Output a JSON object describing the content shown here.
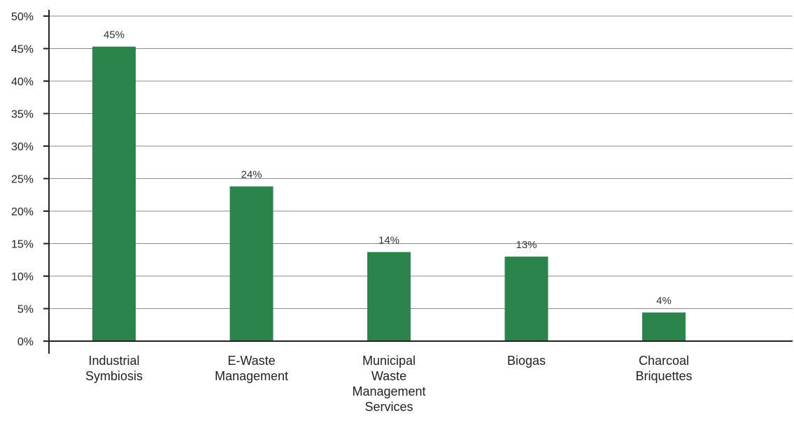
{
  "chart_data": {
    "type": "bar",
    "categories": [
      "Industrial Symbiosis",
      "E-Waste Management",
      "Municipal Waste Management Services",
      "Biogas",
      "Charcoal Briquettes"
    ],
    "category_label_lines": [
      [
        "Industrial",
        "Symbiosis"
      ],
      [
        "E-Waste",
        "Management"
      ],
      [
        "Municipal",
        "Waste",
        "Management",
        "Services"
      ],
      [
        "Biogas"
      ],
      [
        "Charcoal",
        "Briquettes"
      ]
    ],
    "values": [
      45.3,
      23.8,
      13.7,
      13.0,
      4.4
    ],
    "data_labels": [
      "45%",
      "24%",
      "14%",
      "13%",
      "4%"
    ],
    "y_ticks": [
      0,
      5,
      10,
      15,
      20,
      25,
      30,
      35,
      40,
      45,
      50
    ],
    "y_tick_labels": [
      "0%",
      "5%",
      "10%",
      "15%",
      "20%",
      "25%",
      "30%",
      "35%",
      "40%",
      "45%",
      "50%"
    ],
    "ylim": [
      0,
      50
    ],
    "grid": true,
    "bar_color": "#2a844c",
    "title": "",
    "xlabel": "",
    "ylabel": ""
  }
}
